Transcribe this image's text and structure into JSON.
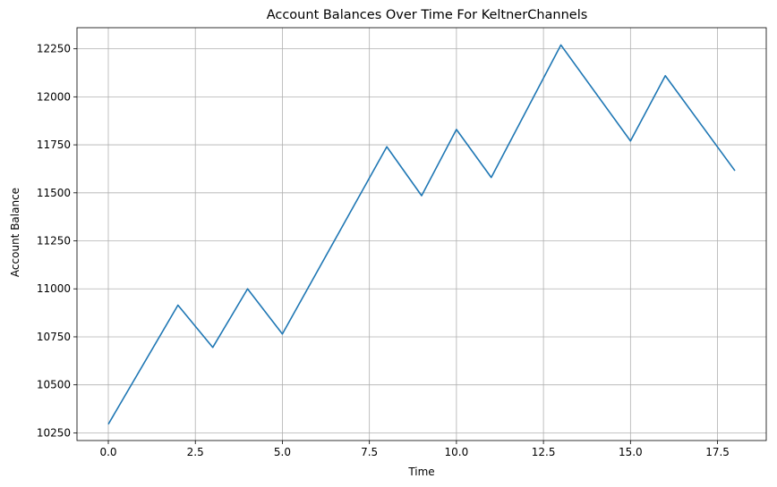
{
  "chart_data": {
    "type": "line",
    "title": "Account Balances Over Time For KeltnerChannels",
    "xlabel": "Time",
    "ylabel": "Account Balance",
    "xlim": [
      -0.9,
      18.9
    ],
    "ylim": [
      10210,
      12360
    ],
    "xticks": [
      0.0,
      2.5,
      5.0,
      7.5,
      10.0,
      12.5,
      15.0,
      17.5
    ],
    "xtick_labels": [
      "0.0",
      "2.5",
      "5.0",
      "7.5",
      "10.0",
      "12.5",
      "15.0",
      "17.5"
    ],
    "yticks": [
      10250,
      10500,
      10750,
      11000,
      11250,
      11500,
      11750,
      12000,
      12250
    ],
    "ytick_labels": [
      "10250",
      "10500",
      "10750",
      "11000",
      "11250",
      "11500",
      "11750",
      "12000",
      "12250"
    ],
    "grid": true,
    "series": [
      {
        "x": [
          0,
          2,
          3,
          4,
          5,
          8,
          9,
          10,
          11,
          13,
          15,
          16,
          18
        ],
        "y": [
          10295,
          10915,
          10695,
          11000,
          10765,
          11740,
          11485,
          11830,
          11580,
          12270,
          11770,
          12110,
          11615
        ],
        "color": "#1f77b4"
      }
    ]
  }
}
